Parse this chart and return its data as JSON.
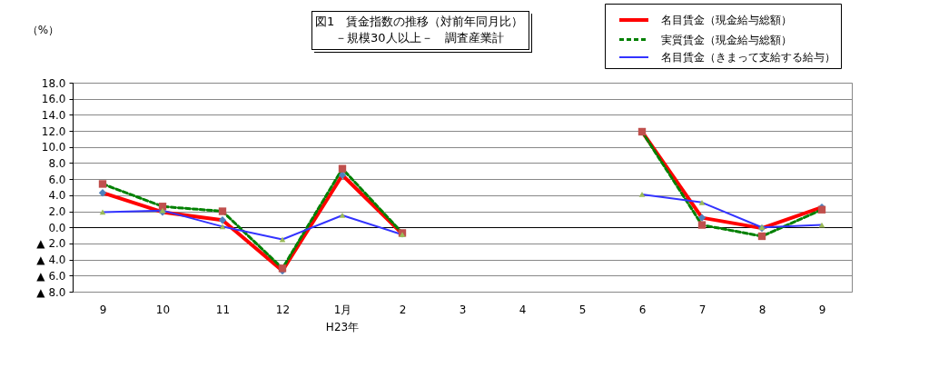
{
  "chart_data": {
    "type": "line",
    "title": "図1　賃金指数の推移（対前年同月比）",
    "subtitle": "－規模30人以上－　調査産業計",
    "ylabel": "（%）",
    "categories": [
      "9",
      "10",
      "11",
      "12",
      "1月",
      "2",
      "3",
      "4",
      "5",
      "6",
      "7",
      "8",
      "9"
    ],
    "series": [
      {
        "name": "名目賃金（現金給与総額）",
        "color": "#ff0000",
        "marker": "diamond",
        "line_style": "solid",
        "colors": [
          "#4f81bd",
          "#4f81bd",
          "#4f81bd",
          "#4f81bd",
          "#4f81bd",
          "#4f81bd",
          null,
          null,
          null,
          "#4f81bd",
          "#4f81bd",
          "#4f81bd",
          "#4f81bd"
        ],
        "values": [
          4.3,
          1.9,
          0.9,
          -5.4,
          6.5,
          -0.8,
          null,
          null,
          null,
          11.9,
          1.2,
          -0.1,
          2.5
        ]
      },
      {
        "name": "実質賃金（現金給与総額）",
        "color": "#008000",
        "marker": "square",
        "line_style": "dashed",
        "colors": [
          "#c0504d",
          "#c0504d",
          "#c0504d",
          "#c0504d",
          "#c0504d",
          "#c0504d",
          null,
          null,
          null,
          "#c0504d",
          "#c0504d",
          "#c0504d",
          "#c0504d"
        ],
        "values": [
          5.4,
          2.6,
          2.0,
          -5.1,
          7.3,
          -0.7,
          null,
          null,
          null,
          11.9,
          0.3,
          -1.1,
          2.2
        ]
      },
      {
        "name": "名目賃金（きまって支給する給与）",
        "color": "#3333ff",
        "marker": "triangle",
        "line_style": "solid",
        "colors": [
          "#9bbb59",
          "#9bbb59",
          "#9bbb59",
          "#9bbb59",
          "#9bbb59",
          "#9bbb59",
          null,
          null,
          null,
          "#9bbb59",
          "#9bbb59",
          "#9bbb59",
          "#9bbb59"
        ],
        "values": [
          1.9,
          2.1,
          0.1,
          -1.5,
          1.5,
          -0.9,
          null,
          null,
          null,
          4.1,
          3.1,
          0.0,
          0.3
        ]
      }
    ],
    "ylim": [
      -8,
      18
    ],
    "yticks": [
      {
        "value": -8,
        "label": "▲ 8.0"
      },
      {
        "value": -6,
        "label": "▲ 6.0"
      },
      {
        "value": -4,
        "label": "▲ 4.0"
      },
      {
        "value": -2,
        "label": "▲ 2.0"
      },
      {
        "value": 0,
        "label": "0.0"
      },
      {
        "value": 2,
        "label": "2.0"
      },
      {
        "value": 4,
        "label": "4.0"
      },
      {
        "value": 6,
        "label": "6.0"
      },
      {
        "value": 8,
        "label": "8.0"
      },
      {
        "value": 10,
        "label": "10.0"
      },
      {
        "value": 12,
        "label": "12.0"
      },
      {
        "value": 14,
        "label": "14.0"
      },
      {
        "value": 16,
        "label": "16.0"
      },
      {
        "value": 18,
        "label": "18.0"
      }
    ],
    "annotations": [
      "H23年"
    ],
    "grid": "y",
    "legend": "top right"
  }
}
